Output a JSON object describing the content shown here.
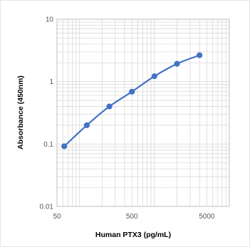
{
  "chart_data": {
    "type": "scatter",
    "title": "",
    "xlabel": "Human PTX3 (pg/mL)",
    "ylabel": "Absorbance (450nm)",
    "x_scale": "log",
    "y_scale": "log",
    "xlim": [
      50,
      10000
    ],
    "ylim": [
      0.01,
      10
    ],
    "x_ticks": [
      {
        "value": 50,
        "label": "50"
      },
      {
        "value": 500,
        "label": "500"
      },
      {
        "value": 5000,
        "label": "5000"
      }
    ],
    "y_ticks": [
      {
        "value": 0.01,
        "label": "0.01"
      },
      {
        "value": 0.1,
        "label": "0.1"
      },
      {
        "value": 1,
        "label": "1"
      },
      {
        "value": 10,
        "label": "10"
      }
    ],
    "grid": "major and minor",
    "legend": "none",
    "series": [
      {
        "x": [
          62.5,
          125,
          250,
          500,
          1000,
          2000,
          4000
        ],
        "y": [
          0.092,
          0.2,
          0.4,
          0.69,
          1.22,
          1.93,
          2.65
        ],
        "color": "#4472c4",
        "markers": true,
        "line": "smoothed"
      }
    ]
  },
  "colors": {
    "series": "#4472c4",
    "grid": "#d9d9d9",
    "frame": "#bfbfbf"
  }
}
